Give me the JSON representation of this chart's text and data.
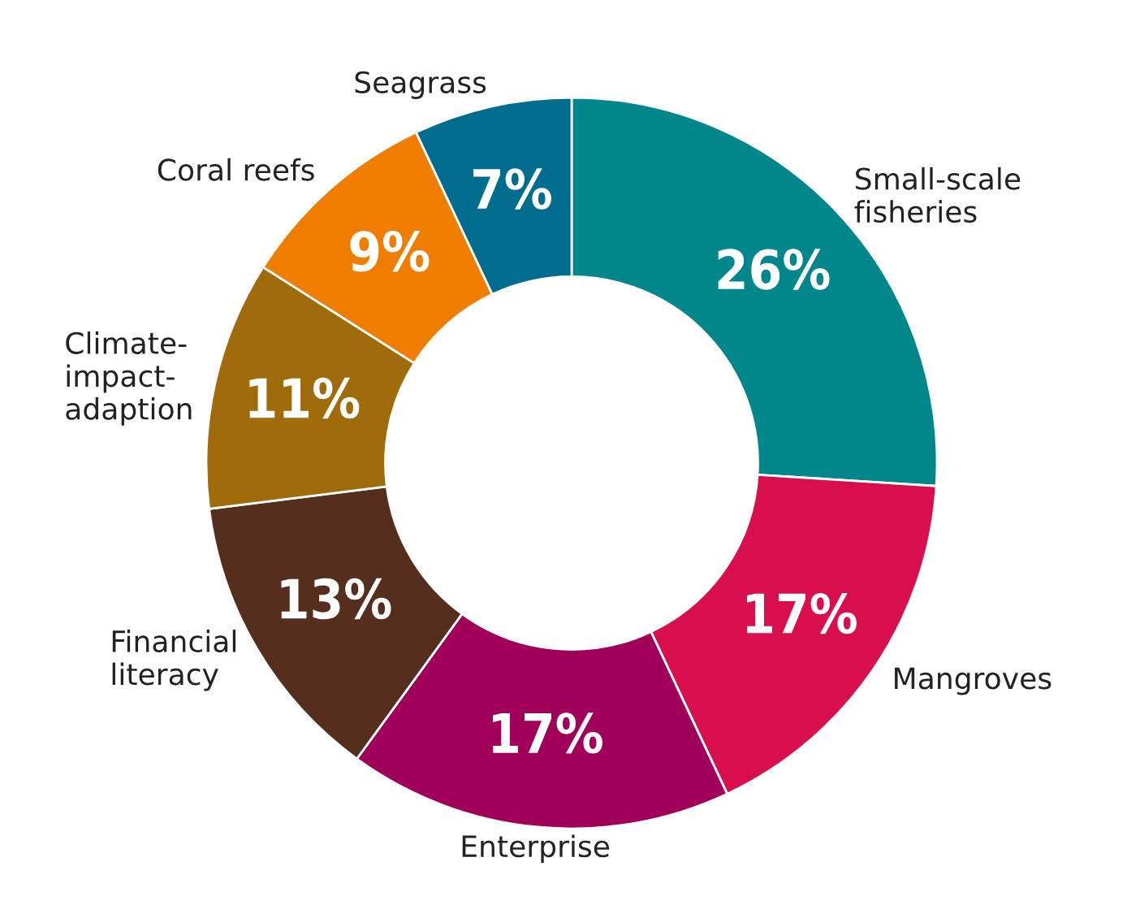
{
  "chart_data": {
    "type": "donut",
    "categories": [
      "Small-scale\nfisheries",
      "Mangroves",
      "Enterprise",
      "Financial\nliteracy",
      "Climate-\nimpact-\nadaption",
      "Coral reefs",
      "Seagrass"
    ],
    "values": [
      26,
      17,
      17,
      13,
      11,
      9,
      7
    ],
    "value_labels": [
      "26%",
      "17%",
      "17%",
      "13%",
      "11%",
      "9%",
      "7%"
    ],
    "colors": [
      "#00868b",
      "#d80e4d",
      "#a0005a",
      "#552e1e",
      "#a06b0a",
      "#ee7d00",
      "#006c8e"
    ]
  }
}
